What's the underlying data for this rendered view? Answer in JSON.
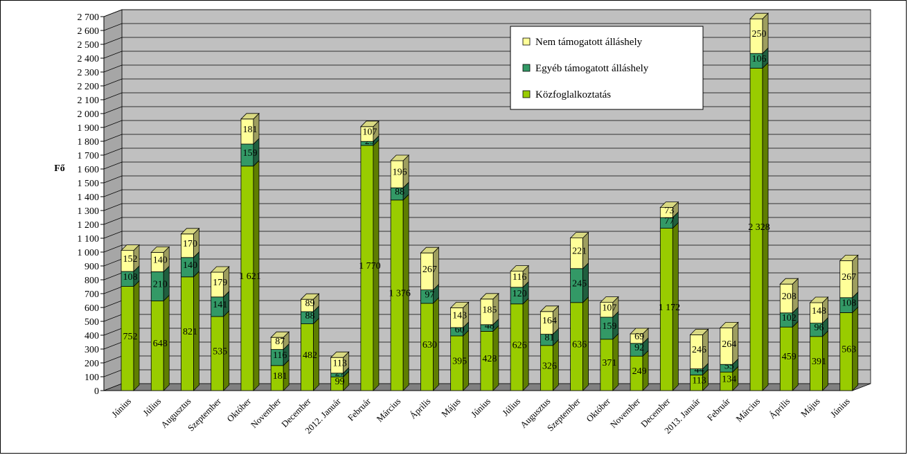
{
  "chart_data": {
    "type": "bar",
    "stacked": true,
    "three_d": true,
    "ylabel": "Fő",
    "ylim": [
      0,
      2700
    ],
    "ytick_step": 100,
    "yticks": [
      "0",
      "100",
      "200",
      "300",
      "400",
      "500",
      "600",
      "700",
      "800",
      "900",
      "1 000",
      "1 100",
      "1 200",
      "1 300",
      "1 400",
      "1 500",
      "1 600",
      "1 700",
      "1 800",
      "1 900",
      "2 000",
      "2 100",
      "2 200",
      "2 300",
      "2 400",
      "2 500",
      "2 600",
      "2 700"
    ],
    "grid": true,
    "legend_position": "top-right",
    "categories": [
      "Június",
      "Július",
      "Augusztus",
      "Szeptember",
      "Október",
      "November",
      "December",
      "2012. Január",
      "Február",
      "Március",
      "Április",
      "Május",
      "Június",
      "Július",
      "Augusztus",
      "Szeptember",
      "Október",
      "November",
      "December",
      "2013. Január",
      "Február",
      "Március",
      "Április",
      "Május",
      "Június"
    ],
    "series": [
      {
        "name": "Közfoglalkoztatás",
        "color": "#99cc00",
        "values": [
          752,
          648,
          821,
          535,
          1621,
          181,
          482,
          99,
          1770,
          1376,
          630,
          395,
          428,
          626,
          326,
          636,
          371,
          249,
          1172,
          113,
          134,
          2328,
          459,
          391,
          563
        ],
        "labels": [
          "752",
          "648",
          "821",
          "535",
          "1 621",
          "181",
          "482",
          "99",
          "1 770",
          "1 376",
          "630",
          "395",
          "428",
          "626",
          "326",
          "636",
          "371",
          "249",
          "1 172",
          "113",
          "134",
          "2 328",
          "459",
          "391",
          "563"
        ]
      },
      {
        "name": "Egyéb támogatott álláshely",
        "color": "#339966",
        "values": [
          108,
          210,
          140,
          141,
          159,
          116,
          88,
          27,
          29,
          88,
          97,
          60,
          48,
          120,
          81,
          245,
          159,
          92,
          77,
          44,
          55,
          106,
          102,
          96,
          108
        ],
        "labels": [
          "108",
          "210",
          "140",
          "141",
          "159",
          "116",
          "88",
          "27",
          "29",
          "88",
          "97",
          "60",
          "48",
          "120",
          "81",
          "245",
          "159",
          "92",
          "77",
          "44",
          "55",
          "106",
          "102",
          "96",
          "108"
        ]
      },
      {
        "name": "Nem támogatott álláshely",
        "color": "#ffff99",
        "values": [
          152,
          140,
          170,
          179,
          181,
          87,
          89,
          113,
          107,
          196,
          267,
          143,
          185,
          116,
          164,
          221,
          107,
          69,
          73,
          246,
          264,
          250,
          208,
          148,
          267
        ],
        "labels": [
          "152",
          "140",
          "170",
          "179",
          "181",
          "87",
          "89",
          "113",
          "107",
          "196",
          "267",
          "143",
          "185",
          "116",
          "164",
          "221",
          "107",
          "69",
          "73",
          "246",
          "264",
          "250",
          "208",
          "148",
          "267"
        ]
      }
    ]
  }
}
